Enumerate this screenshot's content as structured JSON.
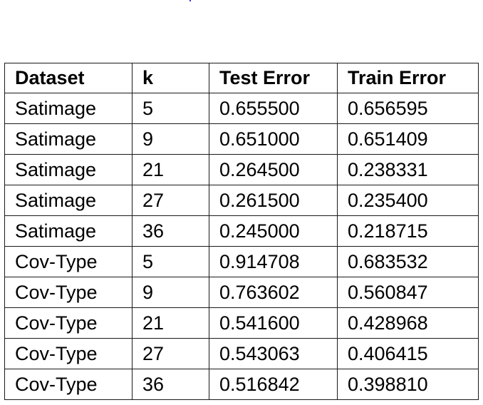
{
  "table": {
    "headers": [
      "Dataset",
      "k",
      "Test Error",
      "Train Error"
    ],
    "rows": [
      [
        "Satimage",
        "5",
        "0.655500",
        "0.656595"
      ],
      [
        "Satimage",
        "9",
        "0.651000",
        "0.651409"
      ],
      [
        "Satimage",
        "21",
        "0.264500",
        "0.238331"
      ],
      [
        "Satimage",
        "27",
        "0.261500",
        "0.235400"
      ],
      [
        "Satimage",
        "36",
        "0.245000",
        "0.218715"
      ],
      [
        "Cov-Type",
        "5",
        "0.914708",
        "0.683532"
      ],
      [
        "Cov-Type",
        "9",
        "0.763602",
        "0.560847"
      ],
      [
        "Cov-Type",
        "21",
        "0.541600",
        "0.428968"
      ],
      [
        "Cov-Type",
        "27",
        "0.543063",
        "0.406415"
      ],
      [
        "Cov-Type",
        "36",
        "0.516842",
        "0.398810"
      ]
    ]
  }
}
